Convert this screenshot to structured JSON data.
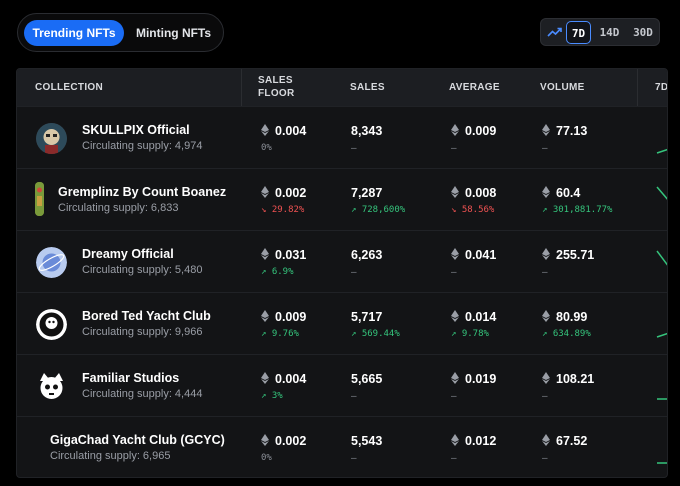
{
  "tabs": {
    "trending": "Trending NFTs",
    "minting": "Minting NFTs"
  },
  "range": {
    "options": [
      "7D",
      "14D",
      "30D"
    ],
    "selected": "7D"
  },
  "header": {
    "collection": "COLLECTION",
    "sales_floor_1": "SALES",
    "sales_floor_2": "FLOOR",
    "sales": "SALES",
    "average": "AVERAGE",
    "volume": "VOLUME",
    "spark": "7D"
  },
  "dash": "–",
  "colors": {
    "accent": "#1a6cf5",
    "up": "#35c47c",
    "down": "#f05252"
  },
  "rows": [
    {
      "name": "SKULLPIX Official",
      "supply": "Circulating supply: 4,974",
      "floor": "0.004",
      "floor_chg": "0%",
      "sales": "8,343",
      "average": "0.009",
      "volume": "77.13"
    },
    {
      "name": "Gremplinz By Count Boanez",
      "supply": "Circulating supply: 6,833",
      "floor": "0.002",
      "floor_chg": "29.82%",
      "sales": "7,287",
      "sales_chg": "728,600%",
      "average": "0.008",
      "average_chg": "58.56%",
      "volume": "60.4",
      "volume_chg": "301,881.77%"
    },
    {
      "name": "Dreamy Official",
      "supply": "Circulating supply: 5,480",
      "floor": "0.031",
      "floor_chg": "6.9%",
      "sales": "6,263",
      "average": "0.041",
      "volume": "255.71"
    },
    {
      "name": "Bored Ted Yacht Club",
      "supply": "Circulating supply: 9,966",
      "floor": "0.009",
      "floor_chg": "9.76%",
      "sales": "5,717",
      "sales_chg": "569.44%",
      "average": "0.014",
      "average_chg": "9.78%",
      "volume": "80.99",
      "volume_chg": "634.89%"
    },
    {
      "name": "Familiar Studios",
      "supply": "Circulating supply: 4,444",
      "floor": "0.004",
      "floor_chg": "3%",
      "sales": "5,665",
      "average": "0.019",
      "volume": "108.21"
    },
    {
      "name": "GigaChad Yacht Club (GCYC)",
      "supply": "Circulating supply: 6,965",
      "floor": "0.002",
      "floor_chg": "0%",
      "sales": "5,543",
      "average": "0.012",
      "volume": "67.52"
    }
  ]
}
